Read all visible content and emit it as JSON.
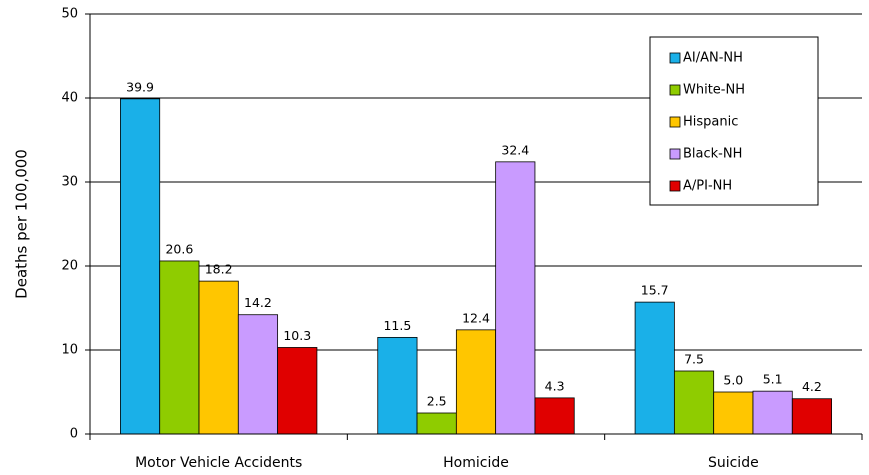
{
  "chart_data": {
    "type": "bar",
    "y_label": "Deaths per 100,000",
    "categories": [
      "Motor Vehicle Accidents",
      "Homicide",
      "Suicide"
    ],
    "series": [
      {
        "name": "AI/AN-NH",
        "color": "#1ab0e8",
        "values": [
          39.9,
          11.5,
          15.7
        ],
        "value_labels": [
          "39.9",
          "11.5",
          "15.7"
        ]
      },
      {
        "name": "White-NH",
        "color": "#8fcc00",
        "values": [
          20.6,
          2.5,
          7.5
        ],
        "value_labels": [
          "20.6",
          "2.5",
          "7.5"
        ]
      },
      {
        "name": "Hispanic",
        "color": "#ffc600",
        "values": [
          18.2,
          12.4,
          5.0
        ],
        "value_labels": [
          "18.2",
          "12.4",
          "5.0"
        ]
      },
      {
        "name": "Black-NH",
        "color": "#c99bff",
        "values": [
          14.2,
          32.4,
          5.1
        ],
        "value_labels": [
          "14.2",
          "32.4",
          "5.1"
        ]
      },
      {
        "name": "A/PI-NH",
        "color": "#e00000",
        "values": [
          10.3,
          4.3,
          4.2
        ],
        "value_labels": [
          "10.3",
          "4.3",
          "4.2"
        ]
      }
    ],
    "ylim": [
      0,
      50
    ],
    "yticks": [
      0,
      10,
      20,
      30,
      40,
      50
    ],
    "grid": true,
    "legend": "upper right"
  }
}
